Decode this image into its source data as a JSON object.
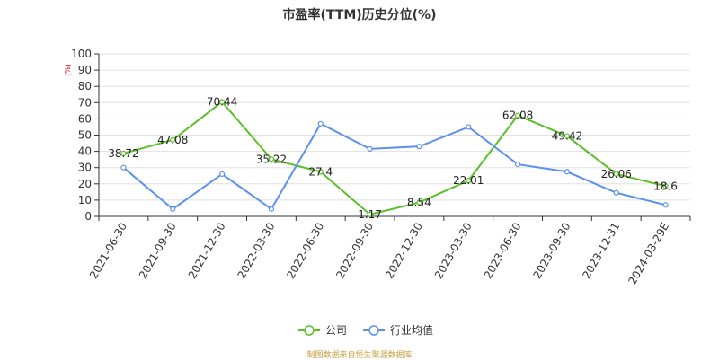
{
  "chart_data": {
    "type": "line",
    "title": "市盈率(TTM)历史分位(%)",
    "ylabel": "(%)",
    "ylim": [
      0,
      100
    ],
    "yticks": [
      0,
      10,
      20,
      30,
      40,
      50,
      60,
      70,
      80,
      90,
      100
    ],
    "categories": [
      "2021-06-30",
      "2021-09-30",
      "2021-12-30",
      "2022-03-30",
      "2022-06-30",
      "2022-09-30",
      "2022-12-30",
      "2023-03-30",
      "2023-06-30",
      "2023-09-30",
      "2023-12-31",
      "2024-03-29E"
    ],
    "series": [
      {
        "name": "公司",
        "color": "#5cbf2a",
        "values": [
          38.72,
          47.08,
          70.44,
          35.22,
          27.4,
          1.17,
          8.54,
          22.01,
          62.08,
          49.42,
          26.06,
          18.6
        ],
        "labels": [
          "38.72",
          "47.08",
          "70.44",
          "35.22",
          "27.4",
          "1.17",
          "8.54",
          "22.01",
          "62.08",
          "49.42",
          "26.06",
          "18.6"
        ]
      },
      {
        "name": "行业均值",
        "color": "#5b8ff0",
        "values": [
          30,
          4.5,
          26,
          4.5,
          57,
          41.5,
          43,
          55,
          32,
          27.5,
          14.5,
          7
        ]
      }
    ],
    "grid": true,
    "legend": "bottom-center"
  },
  "footer": "制图数据来自恒生聚源数据库"
}
